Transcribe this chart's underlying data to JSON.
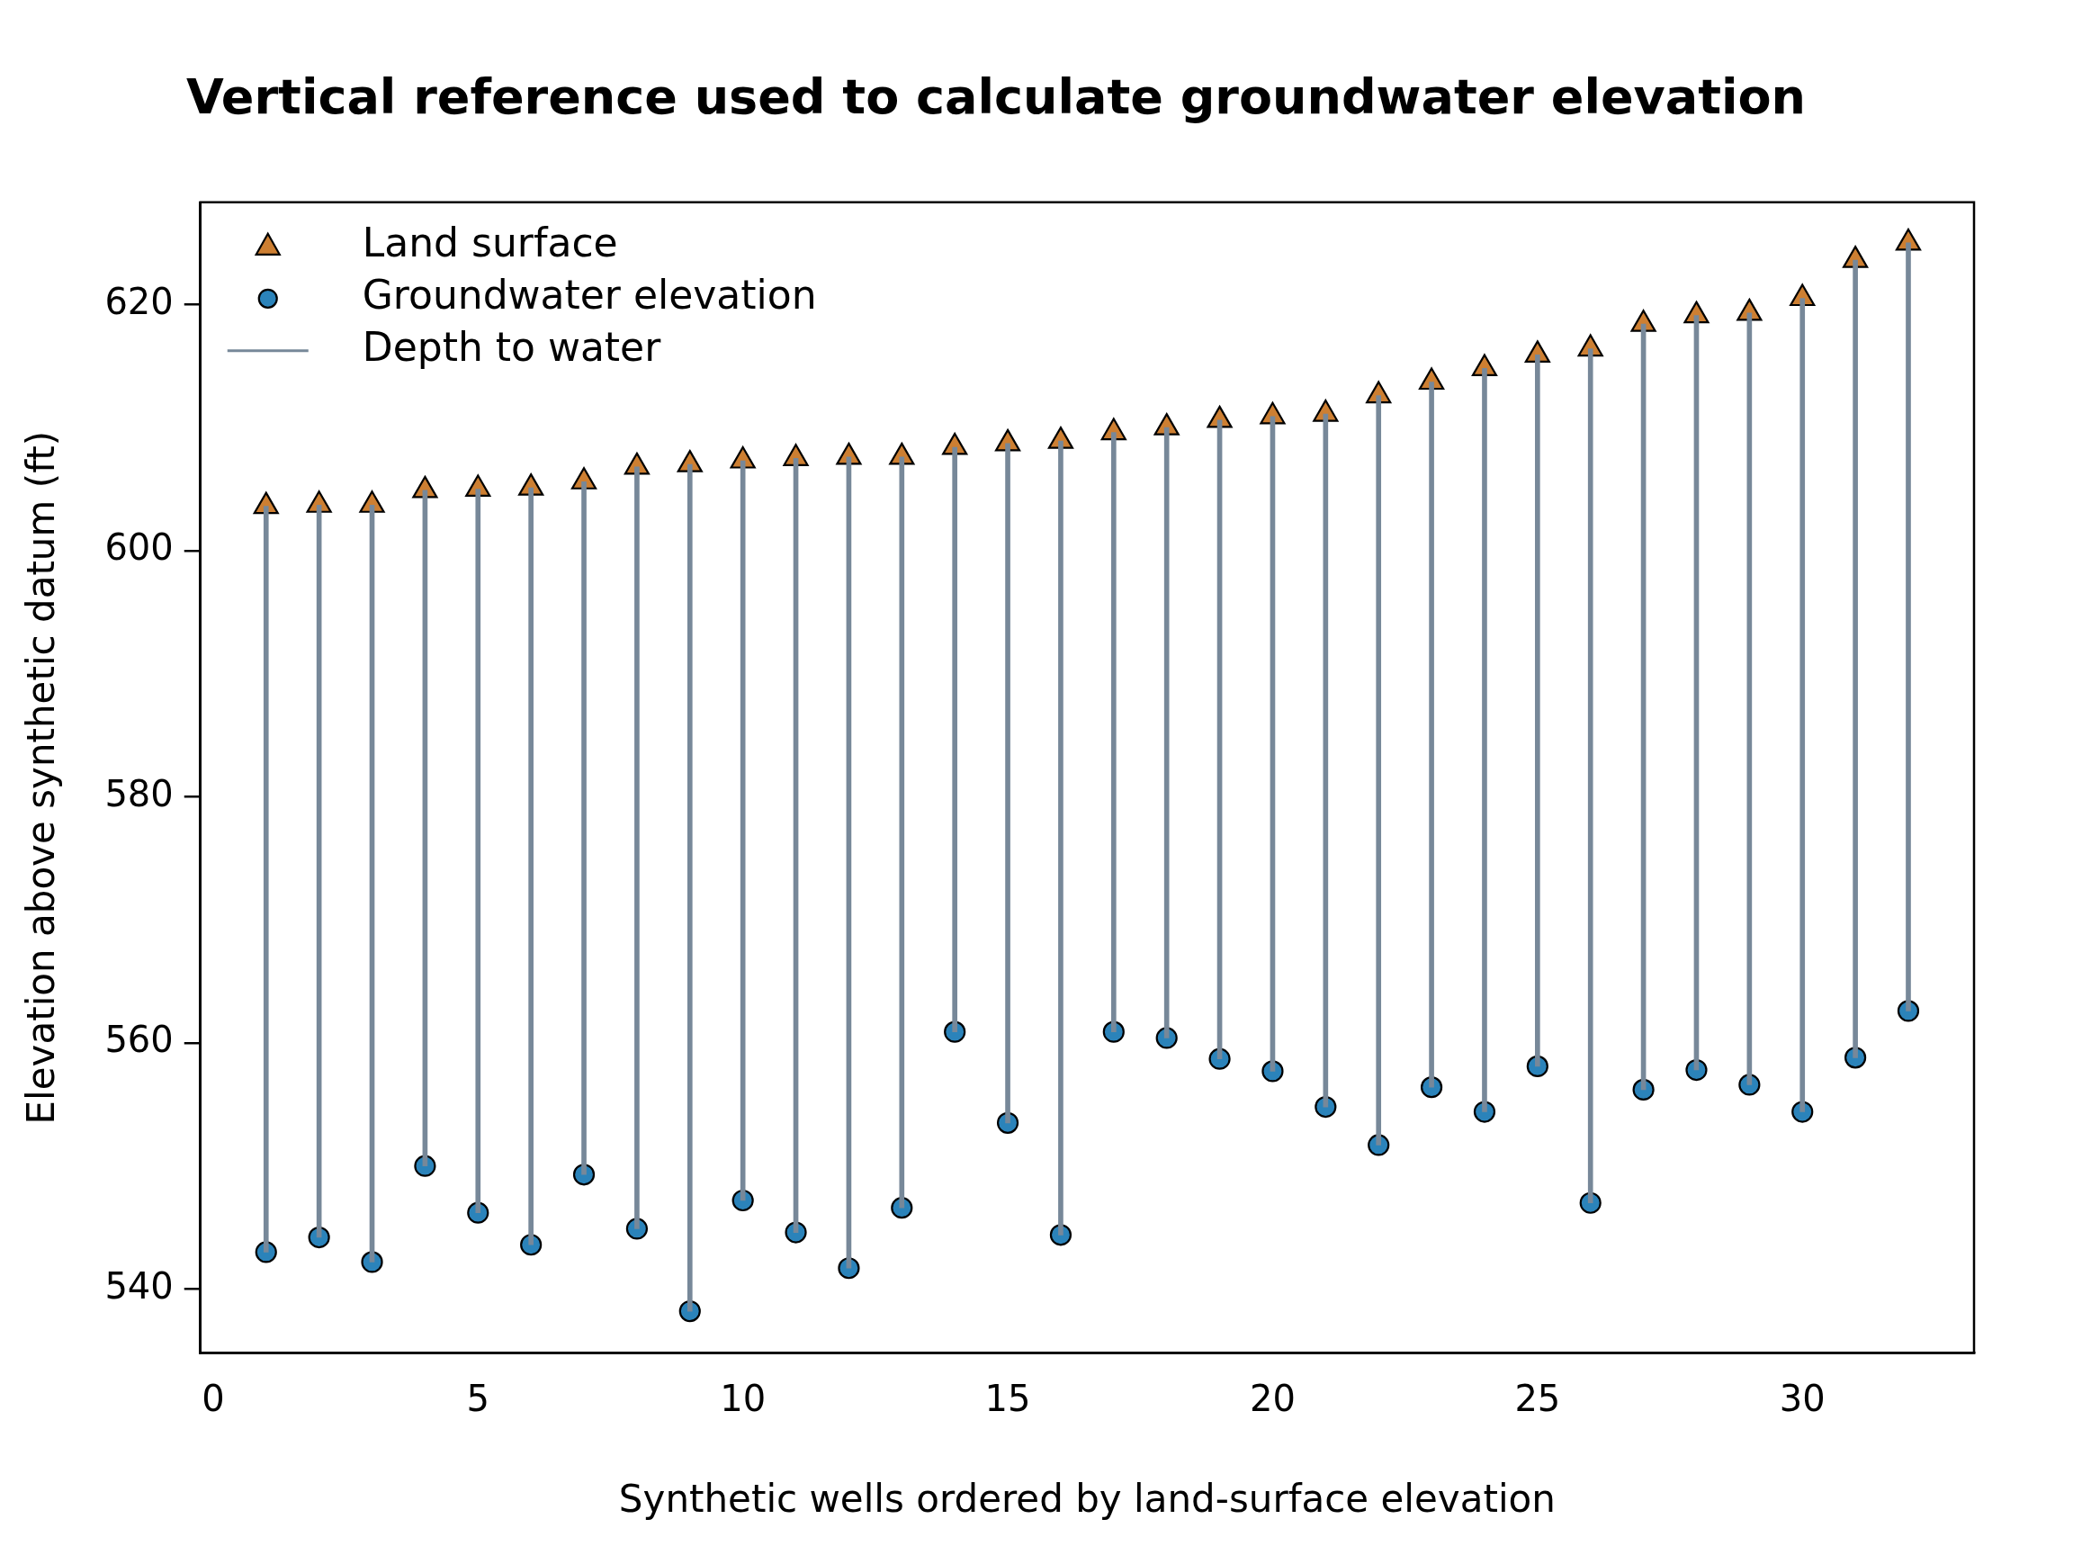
{
  "chart_data": {
    "type": "scatter",
    "title": "Vertical reference used to calculate groundwater elevation",
    "xlabel": "Synthetic wells ordered by land-surface elevation",
    "ylabel": "Elevation above synthetic datum (ft)",
    "x": [
      1,
      2,
      3,
      4,
      5,
      6,
      7,
      8,
      9,
      10,
      11,
      12,
      13,
      14,
      15,
      16,
      17,
      18,
      19,
      20,
      21,
      22,
      23,
      24,
      25,
      26,
      27,
      28,
      29,
      30,
      31,
      32
    ],
    "series": [
      {
        "name": "Land surface",
        "marker": "triangle",
        "color": "#cd7f32",
        "values": [
          603.6,
          603.7,
          603.7,
          604.9,
          605.0,
          605.1,
          605.6,
          606.8,
          607.0,
          607.3,
          607.5,
          607.6,
          607.6,
          608.4,
          608.7,
          608.9,
          609.6,
          610.0,
          610.6,
          610.9,
          611.1,
          612.6,
          613.7,
          614.8,
          615.9,
          616.4,
          618.4,
          619.1,
          619.3,
          620.5,
          623.6,
          625.0
        ]
      },
      {
        "name": "Groundwater elevation",
        "marker": "circle",
        "color": "#2b83ba",
        "values": [
          543.0,
          544.2,
          542.2,
          550.0,
          546.2,
          543.6,
          549.3,
          544.9,
          538.2,
          547.2,
          544.6,
          541.7,
          546.6,
          560.9,
          553.5,
          544.4,
          560.9,
          560.4,
          558.7,
          557.7,
          554.8,
          551.7,
          556.4,
          554.4,
          558.1,
          547.0,
          556.2,
          557.8,
          556.6,
          554.4,
          558.8,
          562.6
        ]
      },
      {
        "name": "Depth to water",
        "type": "bar",
        "color": "#778899",
        "base": [
          543.0,
          544.2,
          542.2,
          550.0,
          546.2,
          543.6,
          549.3,
          544.9,
          538.2,
          547.2,
          544.6,
          541.7,
          546.6,
          560.9,
          553.5,
          544.4,
          560.9,
          560.4,
          558.7,
          557.7,
          554.8,
          551.7,
          556.4,
          554.4,
          558.1,
          547.0,
          556.2,
          557.8,
          556.6,
          554.4,
          558.8,
          562.6
        ],
        "values": [
          60.6,
          59.5,
          61.5,
          54.9,
          58.8,
          61.5,
          56.3,
          61.9,
          68.8,
          60.1,
          62.9,
          65.9,
          61.0,
          47.5,
          55.2,
          64.5,
          48.7,
          49.6,
          51.9,
          53.2,
          56.3,
          60.9,
          57.3,
          60.4,
          57.8,
          69.4,
          62.2,
          61.3,
          62.7,
          66.1,
          64.8,
          62.4
        ]
      }
    ],
    "xlim": [
      -0.24,
      33.24
    ],
    "xticks": [
      0,
      5,
      10,
      15,
      20,
      25,
      30
    ],
    "ylim": [
      534.8,
      628.3
    ],
    "yticks": [
      540,
      560,
      580,
      600,
      620
    ],
    "legend": "top left",
    "grid": false
  }
}
